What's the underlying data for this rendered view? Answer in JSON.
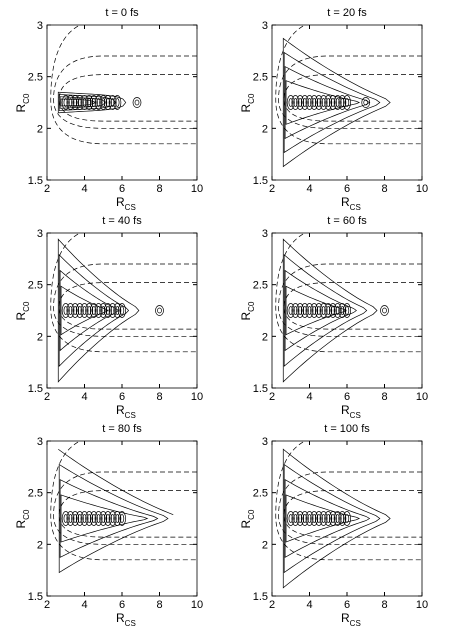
{
  "chart_data": [
    {
      "type": "contour",
      "title": "t = 0 fs",
      "xlabel": "R",
      "xlabel_sub": "CS",
      "ylabel": "R",
      "ylabel_sub": "C0",
      "xlim": [
        2,
        10
      ],
      "ylim": [
        1.5,
        3
      ],
      "xticks": [
        2,
        4,
        6,
        8,
        10
      ],
      "yticks": [
        1.5,
        2,
        2.5,
        3
      ],
      "color": "#000000"
    },
    {
      "type": "contour",
      "title": "t = 20 fs",
      "xlabel": "R",
      "xlabel_sub": "CS",
      "ylabel": "R",
      "ylabel_sub": "C0",
      "xlim": [
        2,
        10
      ],
      "ylim": [
        1.5,
        3
      ],
      "xticks": [
        2,
        4,
        6,
        8,
        10
      ],
      "yticks": [
        1.5,
        2,
        2.5,
        3
      ],
      "color": "#000000"
    },
    {
      "type": "contour",
      "title": "t = 40 fs",
      "xlabel": "R",
      "xlabel_sub": "CS",
      "ylabel": "R",
      "ylabel_sub": "C0",
      "xlim": [
        2,
        10
      ],
      "ylim": [
        1.5,
        3
      ],
      "xticks": [
        2,
        4,
        6,
        8,
        10
      ],
      "yticks": [
        1.5,
        2,
        2.5,
        3
      ],
      "color": "#000000"
    },
    {
      "type": "contour",
      "title": "t = 60 fs",
      "xlabel": "R",
      "xlabel_sub": "CS",
      "ylabel": "R",
      "ylabel_sub": "C0",
      "xlim": [
        2,
        10
      ],
      "ylim": [
        1.5,
        3
      ],
      "xticks": [
        2,
        4,
        6,
        8,
        10
      ],
      "yticks": [
        1.5,
        2,
        2.5,
        3
      ],
      "color": "#000000"
    },
    {
      "type": "contour",
      "title": "t = 80 fs",
      "xlabel": "R",
      "xlabel_sub": "CS",
      "ylabel": "R",
      "ylabel_sub": "C0",
      "xlim": [
        2,
        10
      ],
      "ylim": [
        1.5,
        3
      ],
      "xticks": [
        2,
        4,
        6,
        8,
        10
      ],
      "yticks": [
        1.5,
        2,
        2.5,
        3
      ],
      "color": "#000000"
    },
    {
      "type": "contour",
      "title": "t = 100 fs",
      "xlabel": "R",
      "xlabel_sub": "CS",
      "ylabel": "R",
      "ylabel_sub": "C0",
      "xlim": [
        2,
        10
      ],
      "ylim": [
        1.5,
        3
      ],
      "xticks": [
        2,
        4,
        6,
        8,
        10
      ],
      "yticks": [
        1.5,
        2,
        2.5,
        3
      ],
      "color": "#000000"
    }
  ]
}
